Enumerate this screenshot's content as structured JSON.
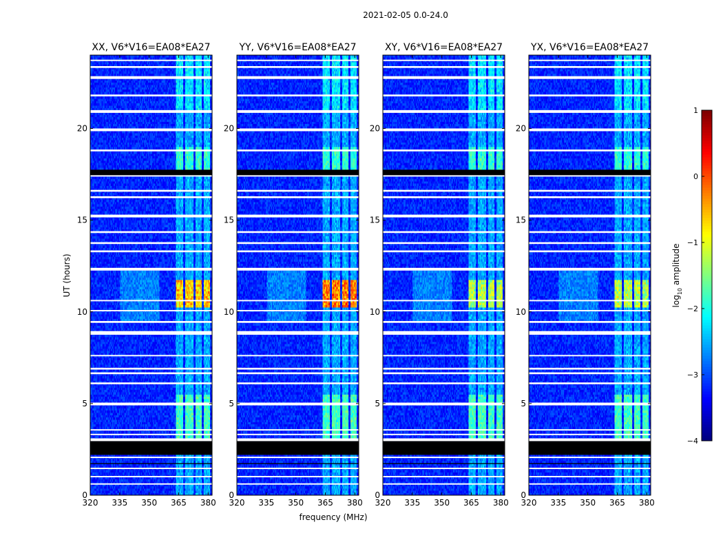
{
  "chart_data": {
    "type": "heatmap",
    "suptitle": "2021-02-05 0.0-24.0",
    "xlabel": "frequency (MHz)",
    "ylabel": "UT (hours)",
    "xlim": [
      320,
      382
    ],
    "ylim": [
      0,
      24
    ],
    "xticks": [
      320,
      335,
      350,
      365,
      380
    ],
    "yticks": [
      0,
      5,
      10,
      15,
      20
    ],
    "colorbar": {
      "label": "log10 amplitude",
      "label_prefix": "log",
      "label_sub": "10",
      "label_suffix": " amplitude",
      "range": [
        -4,
        1
      ],
      "ticks": [
        "1",
        "0",
        "−1",
        "−2",
        "−3",
        "−4"
      ],
      "tick_values": [
        1,
        0,
        -1,
        -2,
        -3,
        -4
      ],
      "colors": [
        "#00007f",
        "#0000ff",
        "#007fff",
        "#00ffff",
        "#7fff7f",
        "#ffff00",
        "#ff7f00",
        "#ff0000",
        "#7f0000"
      ]
    },
    "panels": [
      {
        "title": "XX, V6*V16=EA08*EA27",
        "peak_log10_amplitude": -0.2
      },
      {
        "title": "YY, V6*V16=EA08*EA27",
        "peak_log10_amplitude": 0.2
      },
      {
        "title": "XY, V6*V16=EA08*EA27",
        "peak_log10_amplitude": -0.8
      },
      {
        "title": "YX, V6*V16=EA08*EA27",
        "peak_log10_amplitude": -0.8
      }
    ],
    "background_log10_amplitude": -3.2,
    "rfi_bands_mhz": [
      [
        363.5,
        367.5
      ],
      [
        368.5,
        372.5
      ],
      [
        373.5,
        377
      ],
      [
        378,
        381
      ]
    ],
    "broadband_rfi_mhz": [
      335,
      355
    ],
    "white_gaps_hours": [
      [
        0.6,
        0.65
      ],
      [
        1.0,
        1.05
      ],
      [
        1.45,
        1.5
      ],
      [
        2.05,
        2.1
      ],
      [
        2.95,
        3.1
      ],
      [
        3.3,
        3.35
      ],
      [
        3.55,
        3.6
      ],
      [
        4.9,
        5.05
      ],
      [
        6.05,
        6.15
      ],
      [
        6.6,
        6.7
      ],
      [
        6.85,
        6.95
      ],
      [
        7.6,
        7.65
      ],
      [
        8.75,
        8.95
      ],
      [
        9.4,
        9.5
      ],
      [
        10.05,
        10.1
      ],
      [
        10.6,
        10.65
      ],
      [
        12.25,
        12.4
      ],
      [
        13.25,
        13.35
      ],
      [
        13.7,
        13.8
      ],
      [
        14.3,
        14.4
      ],
      [
        15.15,
        15.3
      ],
      [
        16.2,
        16.3
      ],
      [
        16.55,
        16.65
      ],
      [
        17.4,
        17.45
      ],
      [
        18.75,
        18.85
      ],
      [
        19.85,
        20.0
      ],
      [
        20.85,
        21.0
      ],
      [
        21.75,
        21.85
      ],
      [
        22.7,
        22.85
      ],
      [
        23.3,
        23.4
      ],
      [
        23.7,
        23.75
      ]
    ],
    "flagged_black_hours": [
      [
        1.7,
        1.75
      ],
      [
        2.2,
        2.95
      ],
      [
        17.45,
        17.75
      ]
    ]
  }
}
